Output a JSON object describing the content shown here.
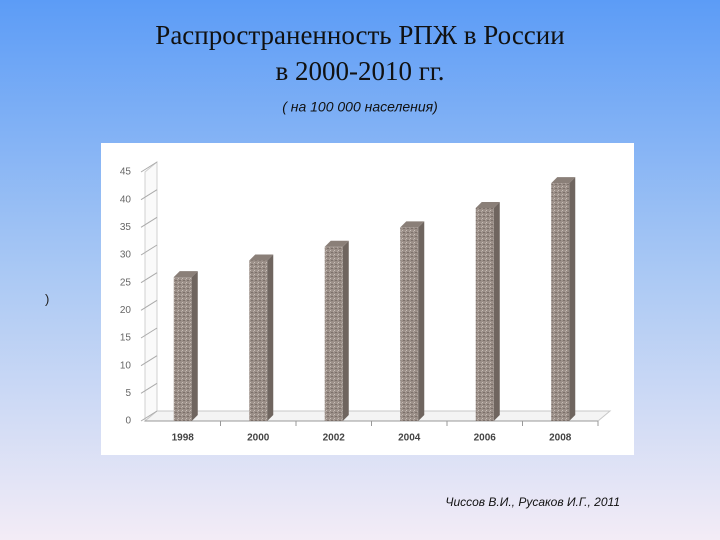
{
  "chart_data": {
    "type": "bar",
    "title": [
      "Распространенность РПЖ в России",
      "в 2000-2010 гг."
    ],
    "subtitle": "( на 100 000 населения)",
    "side_mark": ")",
    "source": "Чиссов В.И., Русаков И.Г., 2011",
    "categories": [
      "1998",
      "2000",
      "2002",
      "2004",
      "2006",
      "2008"
    ],
    "values": [
      26,
      29,
      31.5,
      35,
      38.5,
      43
    ],
    "color": "#9b8f88",
    "ylim": [
      0,
      45
    ],
    "yticks": [
      0,
      5,
      10,
      15,
      20,
      25,
      30,
      35,
      40,
      45
    ],
    "grid": false
  }
}
